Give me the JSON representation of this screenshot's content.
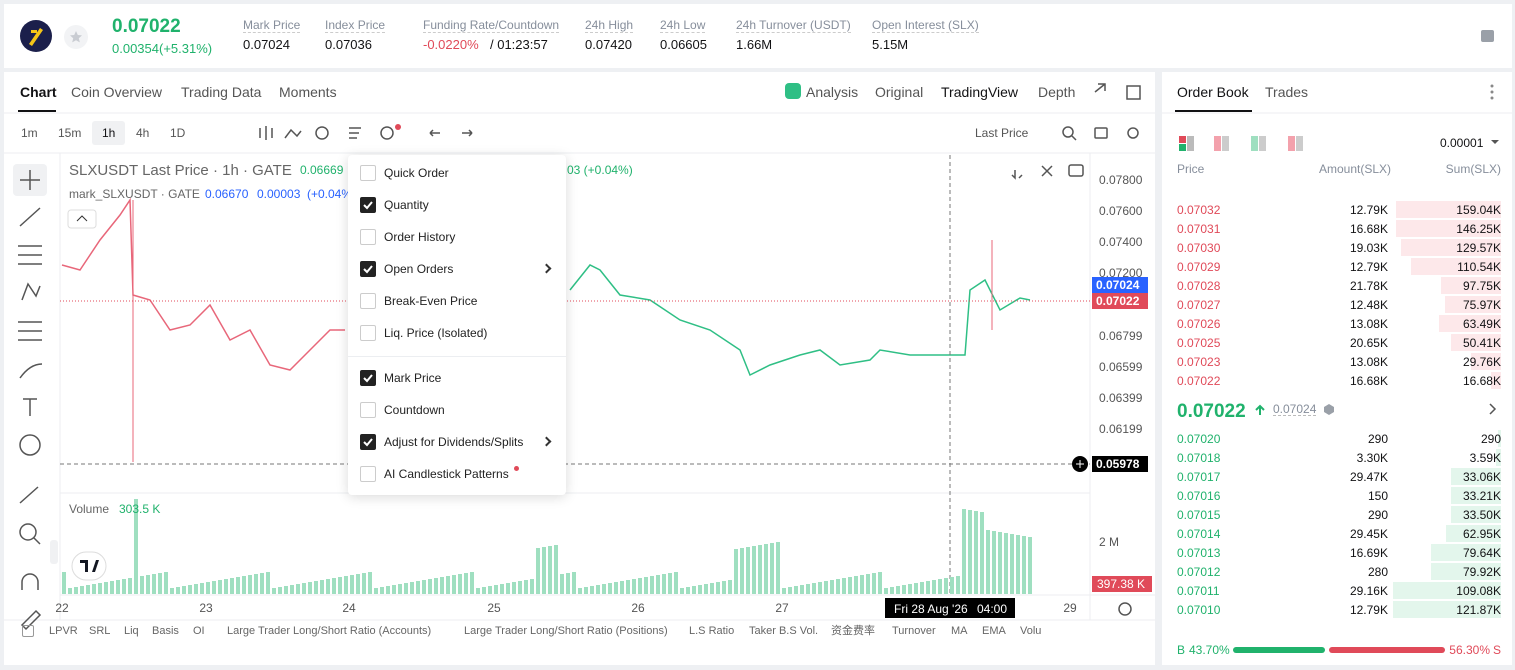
{
  "header": {
    "price": "0.07022",
    "change": "0.00354(+5.31%)",
    "stats": [
      {
        "label": "Mark Price",
        "value": "0.07024"
      },
      {
        "label": "Index Price",
        "value": "0.07036"
      },
      {
        "label": "Funding Rate/Countdown",
        "value": "-0.0220%",
        "extra": "/ 01:23:57"
      },
      {
        "label": "24h High",
        "value": "0.07420"
      },
      {
        "label": "24h Low",
        "value": "0.06605"
      },
      {
        "label": "24h Turnover (USDT)",
        "value": "1.66M"
      },
      {
        "label": "Open Interest (SLX)",
        "value": "5.15M"
      }
    ]
  },
  "chart_panel": {
    "tabs": [
      "Chart",
      "Coin Overview",
      "Trading Data",
      "Moments"
    ],
    "views": [
      "Analysis",
      "Original",
      "TradingView",
      "Depth"
    ],
    "intervals": [
      "1m",
      "15m",
      "1h",
      "4h",
      "1D"
    ],
    "price_type": "Last Price",
    "legend": {
      "title": "SLXUSDT Last Price · 1h · GATE",
      "value": "0.06669",
      "change": "03 (+0.04%)",
      "mark": "mark_SLXUSDT · GATE",
      "mark_value": "0.06670",
      "mark_diff": "0.00003",
      "mark_pct": "(+0.04%"
    },
    "price_axis": [
      "0.07800",
      "0.07600",
      "0.07400",
      "0.07200",
      "0.06799",
      "0.06599",
      "0.06399",
      "0.06199"
    ],
    "badges": {
      "mark": "0.07024",
      "last": "0.07022",
      "cursor": "0.05978"
    },
    "volume": {
      "label": "Volume",
      "value": "303.5 K",
      "axis": "2 M",
      "badge": "397.38 K"
    },
    "time_axis": [
      "22",
      "23",
      "24",
      "25",
      "26",
      "27",
      "29"
    ],
    "crosshair": {
      "date": "Fri 28 Aug '26",
      "time": "04:00"
    },
    "menu": [
      {
        "label": "Quick Order",
        "checked": false
      },
      {
        "label": "Quantity",
        "checked": true
      },
      {
        "label": "Order History",
        "checked": false
      },
      {
        "label": "Open Orders",
        "checked": true,
        "submenu": true
      },
      {
        "label": "Break-Even Price",
        "checked": false
      },
      {
        "label": "Liq. Price (Isolated)",
        "checked": false
      },
      {
        "label": "Mark Price",
        "checked": true
      },
      {
        "label": "Countdown",
        "checked": false
      },
      {
        "label": "Adjust for Dividends/Splits",
        "checked": true,
        "submenu": true
      },
      {
        "label": "AI Candlestick Patterns",
        "checked": false,
        "new": true
      }
    ],
    "indicators": [
      "LPVR",
      "SRL",
      "Liq",
      "Basis",
      "OI",
      "Large Trader Long/Short Ratio (Accounts)",
      "Large Trader Long/Short Ratio (Positions)",
      "L.S Ratio",
      "Taker B.S Vol.",
      "资金费率",
      "Turnover",
      "MA",
      "EMA",
      "Volu"
    ]
  },
  "order_book": {
    "tabs": [
      "Order Book",
      "Trades"
    ],
    "precision": "0.00001",
    "columns": [
      "Price",
      "Amount(SLX)",
      "Sum(SLX)"
    ],
    "asks": [
      [
        "0.07032",
        "12.79K",
        "159.04K"
      ],
      [
        "0.07031",
        "16.68K",
        "146.25K"
      ],
      [
        "0.07030",
        "19.03K",
        "129.57K"
      ],
      [
        "0.07029",
        "12.79K",
        "110.54K"
      ],
      [
        "0.07028",
        "21.78K",
        "97.75K"
      ],
      [
        "0.07027",
        "12.48K",
        "75.97K"
      ],
      [
        "0.07026",
        "13.08K",
        "63.49K"
      ],
      [
        "0.07025",
        "20.65K",
        "50.41K"
      ],
      [
        "0.07023",
        "13.08K",
        "29.76K"
      ],
      [
        "0.07022",
        "16.68K",
        "16.68K"
      ]
    ],
    "last_price": "0.07022",
    "mark_price": "0.07024",
    "bids": [
      [
        "0.07020",
        "290",
        "290"
      ],
      [
        "0.07018",
        "3.30K",
        "3.59K"
      ],
      [
        "0.07017",
        "29.47K",
        "33.06K"
      ],
      [
        "0.07016",
        "150",
        "33.21K"
      ],
      [
        "0.07015",
        "290",
        "33.50K"
      ],
      [
        "0.07014",
        "29.45K",
        "62.95K"
      ],
      [
        "0.07013",
        "16.69K",
        "79.64K"
      ],
      [
        "0.07012",
        "280",
        "79.92K"
      ],
      [
        "0.07011",
        "29.16K",
        "109.08K"
      ],
      [
        "0.07010",
        "12.79K",
        "121.87K"
      ]
    ],
    "buy_label": "B",
    "buy_pct": "43.70%",
    "sell_pct": "56.30%",
    "sell_label": "S"
  }
}
